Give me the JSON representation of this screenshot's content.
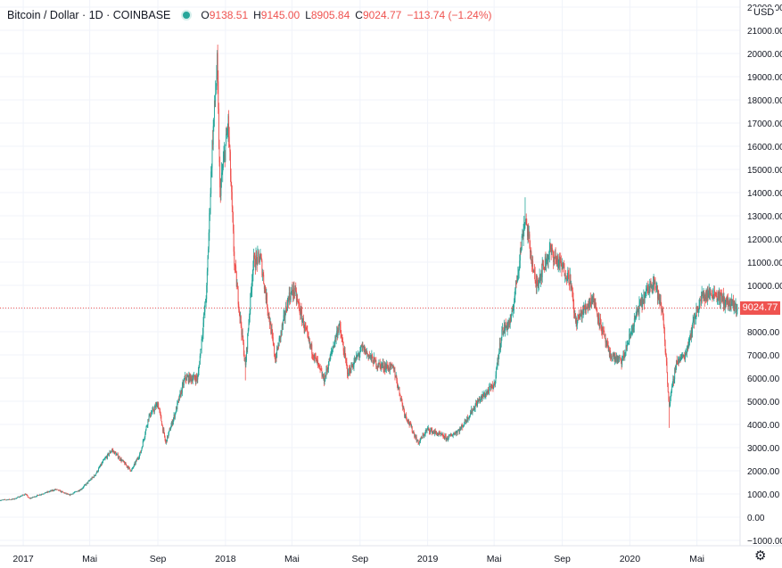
{
  "header": {
    "title": "Bitcoin / Dollar · 1D · COINBASE",
    "open_label": "O",
    "open": "9138.51",
    "high_label": "H",
    "high": "9145.00",
    "low_label": "L",
    "low": "8905.84",
    "close_label": "C",
    "close": "9024.77",
    "change": "−113.74 (−1.24%)"
  },
  "currency": "USD",
  "last_price": "9024.77",
  "settings_icon": "gear-icon",
  "colors": {
    "up": "#26a69a",
    "down": "#ef5350",
    "grid": "#f0f3fa",
    "price_line": "#ef5350"
  },
  "chart_data": {
    "type": "candlestick",
    "title": "Bitcoin / Dollar · 1D · COINBASE",
    "ylim": [
      -1000,
      22000
    ],
    "y_ticks": [
      -1000,
      0,
      1000,
      2000,
      3000,
      4000,
      5000,
      6000,
      7000,
      8000,
      9000,
      10000,
      11000,
      12000,
      13000,
      14000,
      15000,
      16000,
      17000,
      18000,
      19000,
      20000,
      21000,
      22000
    ],
    "y_tick_labels": [
      "−1000.00",
      "0.00",
      "1000.00",
      "2000.00",
      "3000.00",
      "4000.00",
      "5000.00",
      "6000.00",
      "7000.00",
      "8000.00",
      "9000.00",
      "10000.00",
      "11000.00",
      "12000.00",
      "13000.00",
      "14000.00",
      "15000.00",
      "16000.00",
      "17000.00",
      "18000.00",
      "19000.00",
      "20000.00",
      "21000.00",
      "22000.00"
    ],
    "x_tick_labels": [
      "2017",
      "Mai",
      "Sep",
      "2018",
      "Mai",
      "Sep",
      "2019",
      "Mai",
      "Sep",
      "2020",
      "Mai"
    ],
    "x_tick_dates": [
      "2017-01-01",
      "2017-05-01",
      "2017-09-01",
      "2018-01-01",
      "2018-05-01",
      "2018-09-01",
      "2019-01-01",
      "2019-05-01",
      "2019-09-01",
      "2020-01-01",
      "2020-05-01"
    ],
    "x_range": [
      "2016-11-20",
      "2020-07-18"
    ],
    "price_path": [
      [
        "2016-11-20",
        730
      ],
      [
        "2016-12-15",
        780
      ],
      [
        "2017-01-05",
        1000
      ],
      [
        "2017-01-12",
        800
      ],
      [
        "2017-02-01",
        980
      ],
      [
        "2017-03-01",
        1200
      ],
      [
        "2017-03-25",
        950
      ],
      [
        "2017-04-15",
        1200
      ],
      [
        "2017-05-10",
        1800
      ],
      [
        "2017-05-25",
        2400
      ],
      [
        "2017-06-10",
        2900
      ],
      [
        "2017-07-15",
        2000
      ],
      [
        "2017-08-01",
        2800
      ],
      [
        "2017-08-15",
        4300
      ],
      [
        "2017-09-01",
        4900
      ],
      [
        "2017-09-15",
        3200
      ],
      [
        "2017-10-01",
        4400
      ],
      [
        "2017-10-20",
        6000
      ],
      [
        "2017-11-12",
        6000
      ],
      [
        "2017-11-28",
        9800
      ],
      [
        "2017-12-08",
        16000
      ],
      [
        "2017-12-17",
        19500
      ],
      [
        "2017-12-22",
        14000
      ],
      [
        "2018-01-06",
        17000
      ],
      [
        "2018-01-17",
        11000
      ],
      [
        "2018-02-06",
        6500
      ],
      [
        "2018-02-20",
        11000
      ],
      [
        "2018-03-05",
        11200
      ],
      [
        "2018-04-01",
        6800
      ],
      [
        "2018-04-25",
        9500
      ],
      [
        "2018-05-05",
        9800
      ],
      [
        "2018-06-01",
        7500
      ],
      [
        "2018-06-28",
        5900
      ],
      [
        "2018-07-25",
        8300
      ],
      [
        "2018-08-10",
        6200
      ],
      [
        "2018-09-05",
        7300
      ],
      [
        "2018-10-01",
        6600
      ],
      [
        "2018-11-01",
        6400
      ],
      [
        "2018-11-20",
        4500
      ],
      [
        "2018-12-15",
        3200
      ],
      [
        "2019-01-01",
        3800
      ],
      [
        "2019-02-05",
        3400
      ],
      [
        "2019-03-01",
        3800
      ],
      [
        "2019-04-02",
        5000
      ],
      [
        "2019-05-01",
        5700
      ],
      [
        "2019-05-15",
        8000
      ],
      [
        "2019-06-01",
        8500
      ],
      [
        "2019-06-26",
        13000
      ],
      [
        "2019-07-15",
        10000
      ],
      [
        "2019-08-10",
        11500
      ],
      [
        "2019-09-15",
        10300
      ],
      [
        "2019-09-25",
        8400
      ],
      [
        "2019-10-26",
        9500
      ],
      [
        "2019-11-25",
        7000
      ],
      [
        "2019-12-18",
        6700
      ],
      [
        "2020-01-15",
        8900
      ],
      [
        "2020-02-13",
        10300
      ],
      [
        "2020-03-01",
        8700
      ],
      [
        "2020-03-12",
        4800
      ],
      [
        "2020-03-25",
        6700
      ],
      [
        "2020-04-10",
        7000
      ],
      [
        "2020-04-29",
        8800
      ],
      [
        "2020-05-10",
        9500
      ],
      [
        "2020-05-31",
        9700
      ],
      [
        "2020-06-15",
        9400
      ],
      [
        "2020-07-05",
        9100
      ],
      [
        "2020-07-13",
        9025
      ]
    ],
    "extremes": [
      [
        "2017-12-17",
        19900
      ],
      [
        "2018-02-06",
        5900
      ],
      [
        "2018-12-15",
        3150
      ],
      [
        "2019-06-26",
        13800
      ],
      [
        "2020-02-13",
        10500
      ],
      [
        "2020-03-12",
        3850
      ]
    ],
    "last_candle": {
      "open": 9138.51,
      "high": 9145.0,
      "low": 8905.84,
      "close": 9024.77
    }
  }
}
